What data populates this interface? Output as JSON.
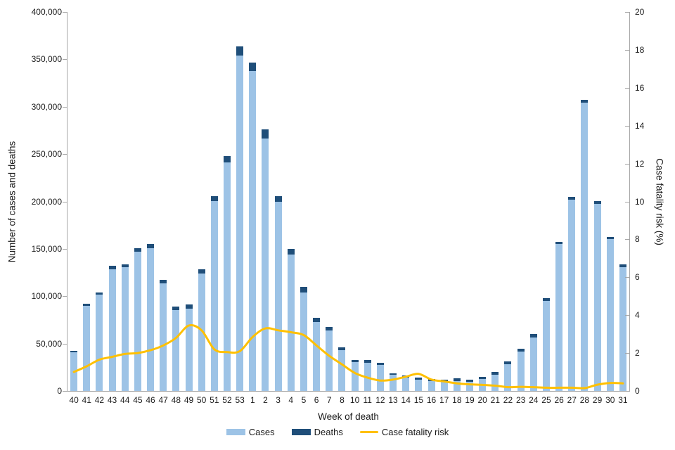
{
  "chart_data": {
    "type": "bar",
    "title": "",
    "xlabel": "Week of death",
    "ylabel_left": "Number of cases and deaths",
    "ylabel_right": "Case fatality risk (%)",
    "ylim_left": [
      0,
      400000
    ],
    "ylim_right": [
      0,
      20
    ],
    "grid": false,
    "legend_position": "bottom",
    "yticks_left": [
      "0",
      "50,000",
      "100,000",
      "150,000",
      "200,000",
      "250,000",
      "300,000",
      "350,000",
      "400,000"
    ],
    "yticks_right": [
      "0",
      "2",
      "4",
      "6",
      "8",
      "10",
      "12",
      "14",
      "16",
      "18",
      "20"
    ],
    "categories": [
      "40",
      "41",
      "42",
      "43",
      "44",
      "45",
      "46",
      "47",
      "48",
      "49",
      "50",
      "51",
      "52",
      "53",
      "1",
      "2",
      "3",
      "4",
      "5",
      "6",
      "7",
      "8",
      "10",
      "11",
      "12",
      "13",
      "14",
      "15",
      "16",
      "17",
      "18",
      "19",
      "20",
      "21",
      "22",
      "23",
      "24",
      "25",
      "26",
      "27",
      "28",
      "29",
      "30",
      "31"
    ],
    "series": [
      {
        "name": "Cases",
        "type": "bar-stacked",
        "axis": "left",
        "color": "#9DC3E6",
        "values": [
          40500,
          90100,
          101800,
          128700,
          130400,
          146800,
          150500,
          113300,
          85500,
          87200,
          123600,
          200100,
          241300,
          354000,
          337500,
          266700,
          199300,
          144300,
          104100,
          72800,
          63600,
          43200,
          30300,
          29800,
          27600,
          16900,
          14400,
          11700,
          10300,
          9500,
          10700,
          9700,
          12600,
          17400,
          28300,
          41500,
          56600,
          94800,
          154900,
          202100,
          304400,
          197300,
          160200,
          130500
        ]
      },
      {
        "name": "Deaths",
        "type": "bar-stacked",
        "axis": "left",
        "color": "#1F4E79",
        "values": [
          2000,
          2000,
          2000,
          3200,
          3200,
          4200,
          4500,
          3700,
          3700,
          4200,
          4500,
          5500,
          6700,
          9500,
          8900,
          9700,
          6500,
          5700,
          5400,
          4500,
          3700,
          3000,
          2500,
          2500,
          2200,
          2000,
          2000,
          2200,
          2200,
          2200,
          2500,
          2200,
          2500,
          2700,
          3000,
          3000,
          3200,
          3500,
          2500,
          2500,
          3000,
          2800,
          2200,
          3000
        ]
      },
      {
        "name": "Case fatality risk",
        "type": "line",
        "axis": "right",
        "color": "#FFC000",
        "values": [
          1.0,
          1.3,
          1.65,
          1.8,
          1.95,
          2.0,
          2.15,
          2.4,
          2.8,
          3.45,
          3.2,
          2.2,
          2.05,
          2.1,
          2.85,
          3.3,
          3.2,
          3.1,
          2.95,
          2.4,
          1.85,
          1.4,
          0.95,
          0.7,
          0.55,
          0.6,
          0.75,
          0.9,
          0.6,
          0.5,
          0.4,
          0.35,
          0.32,
          0.28,
          0.2,
          0.22,
          0.2,
          0.17,
          0.17,
          0.17,
          0.15,
          0.33,
          0.42,
          0.4
        ]
      }
    ],
    "axis_color": "#A6A6A6"
  }
}
